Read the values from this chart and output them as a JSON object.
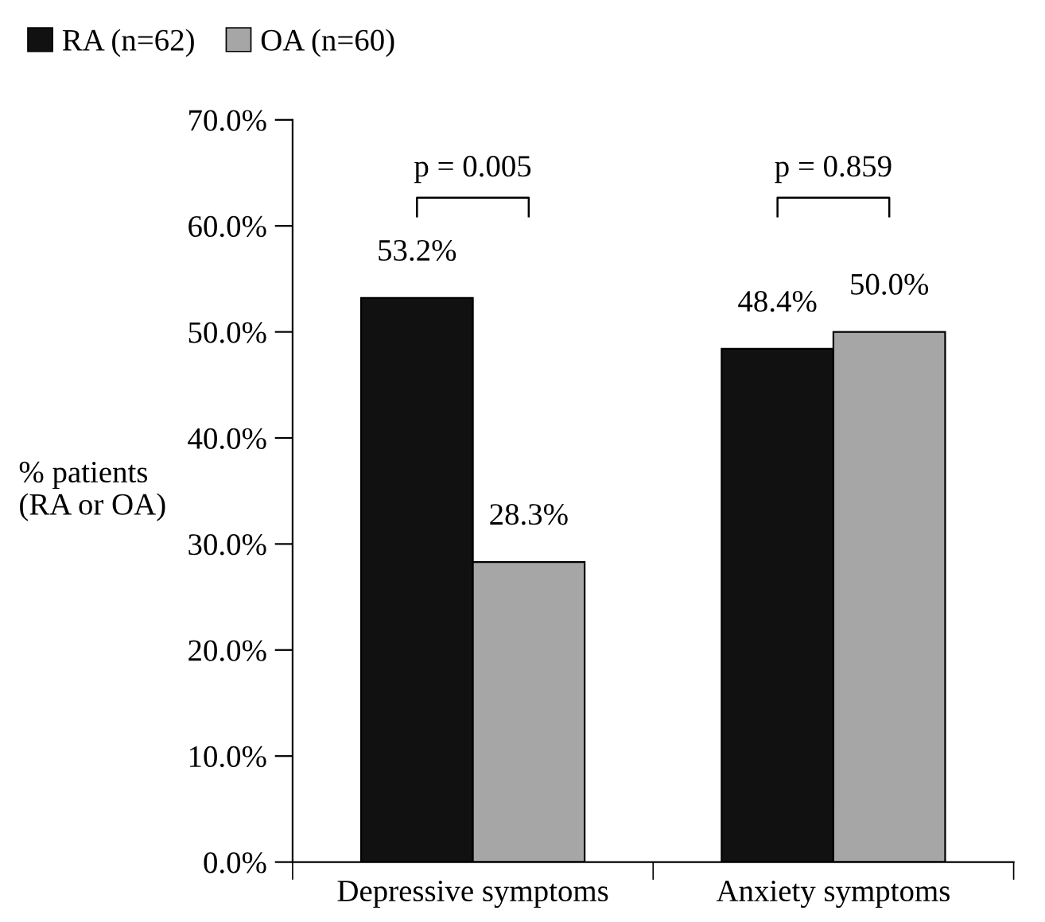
{
  "chart_data": {
    "type": "bar",
    "ylabel": "% patients\n(RA or OA)",
    "categories": [
      "Depressive symptoms",
      "Anxiety symptoms"
    ],
    "series": [
      {
        "name": "RA (n=62)",
        "color": "#111111",
        "values": [
          53.2,
          48.4
        ],
        "value_labels": [
          "53.2%",
          "48.4%"
        ]
      },
      {
        "name": "OA (n=60)",
        "color": "#a6a6a6",
        "values": [
          28.3,
          50.0
        ],
        "value_labels": [
          "28.3%",
          "50.0%"
        ]
      }
    ],
    "ylim": [
      0,
      70
    ],
    "yticks": [
      {
        "value": 0,
        "label": "0.0%"
      },
      {
        "value": 10,
        "label": "10.0%"
      },
      {
        "value": 20,
        "label": "20.0%"
      },
      {
        "value": 30,
        "label": "30.0%"
      },
      {
        "value": 40,
        "label": "40.0%"
      },
      {
        "value": 50,
        "label": "50.0%"
      },
      {
        "value": 60,
        "label": "60.0%"
      },
      {
        "value": 70,
        "label": "70.0%"
      }
    ],
    "annotations": [
      "p = 0.005",
      "p = 0.859"
    ],
    "grid": false,
    "legend": "top left"
  }
}
